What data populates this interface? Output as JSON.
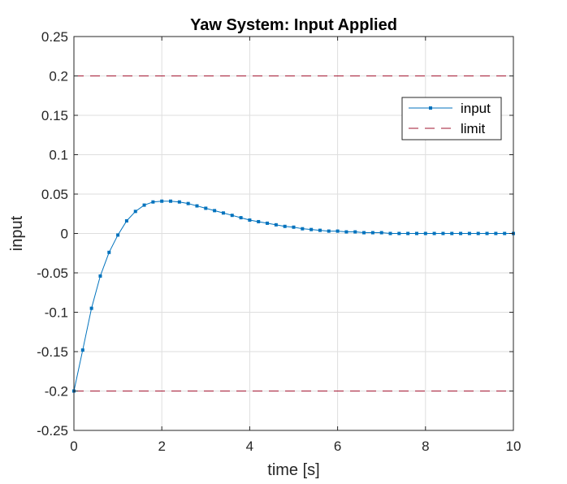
{
  "chart_data": {
    "type": "line",
    "title": "Yaw System: Input Applied",
    "xlabel": "time [s]",
    "ylabel": "input",
    "xlim": [
      0,
      10
    ],
    "ylim": [
      -0.25,
      0.25
    ],
    "xticks": [
      0,
      2,
      4,
      6,
      8,
      10
    ],
    "xtick_labels": [
      "0",
      "2",
      "4",
      "6",
      "8",
      "10"
    ],
    "yticks": [
      -0.25,
      -0.2,
      -0.15,
      -0.1,
      -0.05,
      0,
      0.05,
      0.1,
      0.15,
      0.2,
      0.25
    ],
    "ytick_labels": [
      "-0.25",
      "-0.2",
      "-0.15",
      "-0.1",
      "-0.05",
      "0",
      "0.05",
      "0.1",
      "0.15",
      "0.2",
      "0.25"
    ],
    "grid": true,
    "legend_position": "top-right",
    "series": [
      {
        "name": "input",
        "color": "#0072BD",
        "marker": "square",
        "x": [
          0,
          0.2,
          0.4,
          0.6,
          0.8,
          1.0,
          1.2,
          1.4,
          1.6,
          1.8,
          2.0,
          2.2,
          2.4,
          2.6,
          2.8,
          3.0,
          3.2,
          3.4,
          3.6,
          3.8,
          4.0,
          4.2,
          4.4,
          4.6,
          4.8,
          5.0,
          5.2,
          5.4,
          5.6,
          5.8,
          6.0,
          6.2,
          6.4,
          6.6,
          6.8,
          7.0,
          7.2,
          7.4,
          7.6,
          7.8,
          8.0,
          8.2,
          8.4,
          8.6,
          8.8,
          9.0,
          9.2,
          9.4,
          9.6,
          9.8,
          10.0
        ],
        "y": [
          -0.2,
          -0.148,
          -0.095,
          -0.054,
          -0.024,
          -0.002,
          0.016,
          0.028,
          0.036,
          0.04,
          0.041,
          0.041,
          0.04,
          0.038,
          0.035,
          0.032,
          0.029,
          0.026,
          0.023,
          0.02,
          0.017,
          0.015,
          0.013,
          0.011,
          0.009,
          0.008,
          0.006,
          0.005,
          0.004,
          0.003,
          0.003,
          0.002,
          0.002,
          0.001,
          0.001,
          0.001,
          0.0,
          0.0,
          0.0,
          0.0,
          0.0,
          0.0,
          0.0,
          0.0,
          0.0,
          0.0,
          0.0,
          0.0,
          0.0,
          0.0,
          0.0
        ]
      },
      {
        "name": "limit",
        "color": "#A2142F",
        "style": "dashed",
        "x": [
          0,
          10
        ],
        "y": [
          0.2,
          0.2
        ]
      },
      {
        "name": "limit",
        "color": "#A2142F",
        "style": "dashed",
        "x": [
          0,
          10
        ],
        "y": [
          -0.2,
          -0.2
        ]
      }
    ]
  }
}
